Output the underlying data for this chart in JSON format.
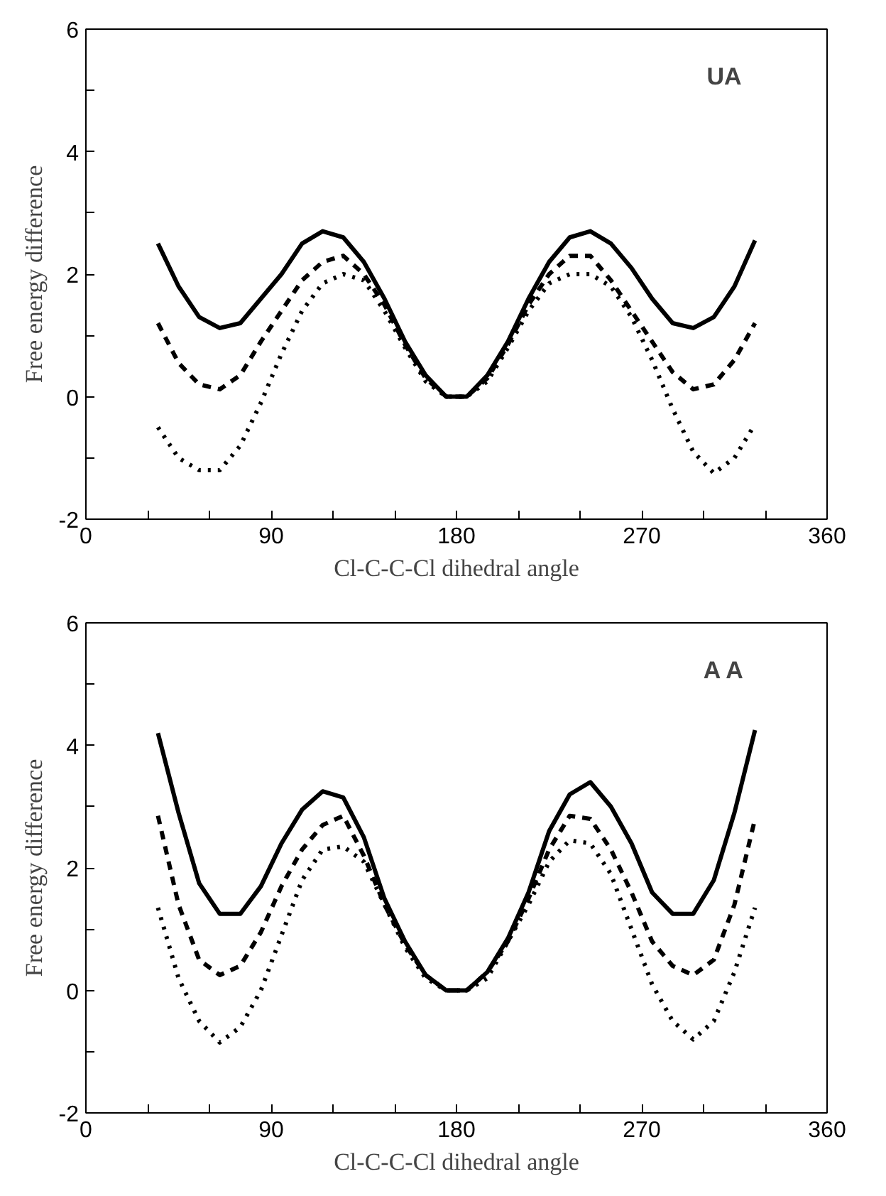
{
  "chart_data": [
    {
      "type": "line",
      "xlabel": "Cl-C-C-Cl dihedral angle",
      "ylabel": "Free energy difference",
      "annotations": [
        "UA"
      ],
      "x": [
        35,
        45,
        55,
        65,
        75,
        85,
        95,
        105,
        115,
        125,
        135,
        145,
        155,
        165,
        175,
        185,
        195,
        205,
        215,
        225,
        235,
        245,
        255,
        265,
        275,
        285,
        295,
        305,
        315,
        325
      ],
      "series": [
        {
          "color": "#000000",
          "line_style": "solid",
          "values": [
            2.5,
            1.8,
            1.3,
            1.12,
            1.2,
            1.6,
            2.0,
            2.5,
            2.7,
            2.6,
            2.2,
            1.6,
            0.9,
            0.35,
            0,
            0,
            0.35,
            0.9,
            1.6,
            2.2,
            2.6,
            2.7,
            2.5,
            2.1,
            1.6,
            1.2,
            1.12,
            1.3,
            1.8,
            2.55
          ]
        },
        {
          "color": "#000000",
          "line_style": "dashed",
          "values": [
            1.2,
            0.55,
            0.2,
            0.12,
            0.35,
            0.9,
            1.4,
            1.9,
            2.2,
            2.3,
            2.0,
            1.5,
            0.85,
            0.3,
            0,
            0,
            0.3,
            0.85,
            1.5,
            2.0,
            2.3,
            2.3,
            1.9,
            1.4,
            0.9,
            0.4,
            0.12,
            0.2,
            0.6,
            1.2
          ]
        },
        {
          "color": "#000000",
          "line_style": "dotted",
          "values": [
            -0.5,
            -1.0,
            -1.2,
            -1.2,
            -0.8,
            -0.1,
            0.7,
            1.4,
            1.85,
            2.0,
            1.9,
            1.4,
            0.8,
            0.25,
            0,
            0,
            0.25,
            0.8,
            1.4,
            1.85,
            2.0,
            2.0,
            1.8,
            1.3,
            0.6,
            -0.2,
            -0.9,
            -1.25,
            -1.0,
            -0.45
          ]
        }
      ],
      "xlim": [
        0,
        360
      ],
      "ylim": [
        -2,
        6
      ],
      "xticks": [
        0,
        {
          "value": 30,
          "label": null
        },
        {
          "value": 60,
          "label": null
        },
        90,
        {
          "value": 120,
          "label": null
        },
        {
          "value": 150,
          "label": null
        },
        180,
        {
          "value": 210,
          "label": null
        },
        {
          "value": 240,
          "label": null
        },
        270,
        {
          "value": 300,
          "label": null
        },
        {
          "value": 330,
          "label": null
        },
        360
      ],
      "yticks": [
        -2,
        {
          "value": -1,
          "label": null
        },
        0,
        {
          "value": 1,
          "label": null
        },
        2,
        {
          "value": 3,
          "label": null
        },
        4,
        {
          "value": 5,
          "label": null
        },
        6
      ],
      "grid": false,
      "marker": "none"
    },
    {
      "type": "line",
      "xlabel": "Cl-C-C-Cl dihedral angle",
      "ylabel": "Free energy difference",
      "annotations": [
        "A A"
      ],
      "x": [
        35,
        45,
        55,
        65,
        75,
        85,
        95,
        105,
        115,
        125,
        135,
        145,
        155,
        165,
        175,
        185,
        195,
        205,
        215,
        225,
        235,
        245,
        255,
        265,
        275,
        285,
        295,
        305,
        315,
        325
      ],
      "series": [
        {
          "color": "#000000",
          "line_style": "solid",
          "values": [
            4.2,
            2.9,
            1.75,
            1.25,
            1.25,
            1.7,
            2.4,
            2.95,
            3.25,
            3.15,
            2.5,
            1.5,
            0.8,
            0.25,
            0,
            0,
            0.3,
            0.85,
            1.6,
            2.6,
            3.2,
            3.4,
            3.0,
            2.4,
            1.6,
            1.25,
            1.25,
            1.8,
            2.9,
            4.25
          ]
        },
        {
          "color": "#000000",
          "line_style": "dashed",
          "values": [
            2.85,
            1.4,
            0.5,
            0.25,
            0.4,
            0.95,
            1.7,
            2.3,
            2.7,
            2.85,
            2.2,
            1.4,
            0.75,
            0.25,
            0,
            0,
            0.3,
            0.8,
            1.5,
            2.3,
            2.85,
            2.8,
            2.3,
            1.6,
            0.8,
            0.4,
            0.25,
            0.5,
            1.4,
            2.8
          ]
        },
        {
          "color": "#000000",
          "line_style": "dotted",
          "values": [
            1.35,
            0.2,
            -0.5,
            -0.85,
            -0.6,
            0.0,
            0.9,
            1.8,
            2.3,
            2.35,
            2.1,
            1.4,
            0.7,
            0.2,
            0,
            0,
            0.2,
            0.8,
            1.4,
            2.1,
            2.45,
            2.4,
            1.9,
            1.0,
            0.1,
            -0.5,
            -0.8,
            -0.5,
            0.3,
            1.35
          ]
        }
      ],
      "xlim": [
        0,
        360
      ],
      "ylim": [
        -2,
        6
      ],
      "xticks": [
        0,
        {
          "value": 30,
          "label": null
        },
        {
          "value": 60,
          "label": null
        },
        90,
        {
          "value": 120,
          "label": null
        },
        {
          "value": 150,
          "label": null
        },
        180,
        {
          "value": 210,
          "label": null
        },
        {
          "value": 240,
          "label": null
        },
        270,
        {
          "value": 300,
          "label": null
        },
        {
          "value": 330,
          "label": null
        },
        360
      ],
      "yticks": [
        -2,
        {
          "value": -1,
          "label": null
        },
        0,
        {
          "value": 1,
          "label": null
        },
        2,
        {
          "value": 3,
          "label": null
        },
        4,
        {
          "value": 5,
          "label": null
        },
        6
      ],
      "grid": false,
      "marker": "none"
    }
  ]
}
